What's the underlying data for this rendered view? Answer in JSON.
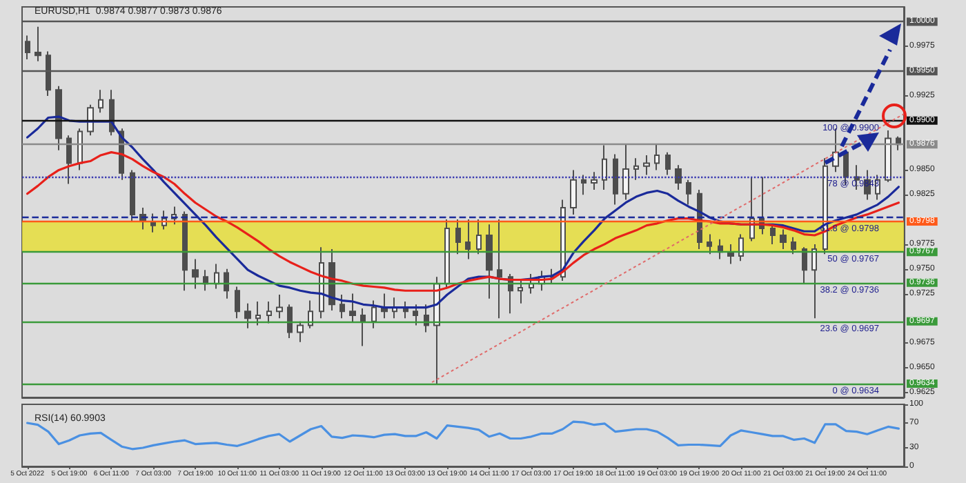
{
  "chart_data": [
    {
      "type": "candlestick",
      "title": "EURUSD,H1  0.9874 0.9877 0.9873 0.9876",
      "color": "#4d4d4d",
      "ohlc": [
        [
          0.998,
          0.9986,
          0.9962,
          0.9969
        ],
        [
          0.9969,
          0.9995,
          0.996,
          0.9966
        ],
        [
          0.9966,
          0.997,
          0.9925,
          0.9931
        ],
        [
          0.9931,
          0.9935,
          0.987,
          0.9882
        ],
        [
          0.9882,
          0.9885,
          0.9836,
          0.9857
        ],
        [
          0.9857,
          0.9892,
          0.985,
          0.9889
        ],
        [
          0.9889,
          0.9916,
          0.9885,
          0.9913
        ],
        [
          0.9913,
          0.9931,
          0.9908,
          0.9921
        ],
        [
          0.9921,
          0.9931,
          0.9885,
          0.9889
        ],
        [
          0.9889,
          0.9892,
          0.984,
          0.9847
        ],
        [
          0.9847,
          0.985,
          0.9798,
          0.9805
        ],
        [
          0.9805,
          0.9812,
          0.979,
          0.9798
        ],
        [
          0.9798,
          0.9806,
          0.9787,
          0.9794
        ],
        [
          0.9794,
          0.9809,
          0.979,
          0.9801
        ],
        [
          0.9801,
          0.9813,
          0.9795,
          0.9805
        ],
        [
          0.9805,
          0.9808,
          0.9728,
          0.9749
        ],
        [
          0.9749,
          0.976,
          0.973,
          0.9742
        ],
        [
          0.9742,
          0.9749,
          0.9728,
          0.9735
        ],
        [
          0.9735,
          0.9755,
          0.973,
          0.9746
        ],
        [
          0.9746,
          0.975,
          0.972,
          0.9728
        ],
        [
          0.9728,
          0.9732,
          0.97,
          0.9707
        ],
        [
          0.9707,
          0.9715,
          0.969,
          0.97
        ],
        [
          0.97,
          0.9717,
          0.9693,
          0.9703
        ],
        [
          0.9703,
          0.9717,
          0.9695,
          0.9707
        ],
        [
          0.9707,
          0.9724,
          0.97,
          0.9711
        ],
        [
          0.9711,
          0.9714,
          0.968,
          0.9686
        ],
        [
          0.9686,
          0.9697,
          0.9676,
          0.9693
        ],
        [
          0.9693,
          0.9718,
          0.969,
          0.9707
        ],
        [
          0.9707,
          0.9772,
          0.97,
          0.9756
        ],
        [
          0.9756,
          0.977,
          0.9708,
          0.9714
        ],
        [
          0.9714,
          0.9724,
          0.97,
          0.9707
        ],
        [
          0.9707,
          0.9725,
          0.9696,
          0.9703
        ],
        [
          0.9703,
          0.971,
          0.9672,
          0.9697
        ],
        [
          0.9697,
          0.9718,
          0.969,
          0.9711
        ],
        [
          0.9711,
          0.9725,
          0.97,
          0.9707
        ],
        [
          0.9707,
          0.9721,
          0.97,
          0.9711
        ],
        [
          0.9711,
          0.9717,
          0.97,
          0.9707
        ],
        [
          0.9707,
          0.9714,
          0.9693,
          0.9703
        ],
        [
          0.9703,
          0.9714,
          0.9686,
          0.9693
        ],
        [
          0.9693,
          0.9742,
          0.9634,
          0.9735
        ],
        [
          0.9735,
          0.98,
          0.973,
          0.9791
        ],
        [
          0.9791,
          0.98,
          0.9765,
          0.9777
        ],
        [
          0.9777,
          0.98,
          0.976,
          0.977
        ],
        [
          0.977,
          0.98,
          0.9765,
          0.9784
        ],
        [
          0.9784,
          0.9795,
          0.972,
          0.9749
        ],
        [
          0.9749,
          0.98,
          0.97,
          0.9742
        ],
        [
          0.9742,
          0.9745,
          0.9705,
          0.9728
        ],
        [
          0.9728,
          0.9738,
          0.9715,
          0.9731
        ],
        [
          0.9731,
          0.9745,
          0.9725,
          0.9735
        ],
        [
          0.9735,
          0.9748,
          0.9728,
          0.9742
        ],
        [
          0.9742,
          0.975,
          0.9735,
          0.9742
        ],
        [
          0.9742,
          0.982,
          0.9738,
          0.9812
        ],
        [
          0.9812,
          0.985,
          0.9805,
          0.984
        ],
        [
          0.984,
          0.9845,
          0.9825,
          0.9837
        ],
        [
          0.9837,
          0.9848,
          0.983,
          0.984
        ],
        [
          0.984,
          0.9875,
          0.983,
          0.9861
        ],
        [
          0.9861,
          0.9866,
          0.9815,
          0.9826
        ],
        [
          0.9826,
          0.9876,
          0.982,
          0.9851
        ],
        [
          0.9851,
          0.9862,
          0.984,
          0.9854
        ],
        [
          0.9854,
          0.9865,
          0.9845,
          0.9857
        ],
        [
          0.9857,
          0.9876,
          0.985,
          0.9865
        ],
        [
          0.9865,
          0.9868,
          0.9845,
          0.9851
        ],
        [
          0.9851,
          0.9855,
          0.983,
          0.9837
        ],
        [
          0.9837,
          0.984,
          0.9815,
          0.9826
        ],
        [
          0.9826,
          0.983,
          0.977,
          0.9777
        ],
        [
          0.9777,
          0.9785,
          0.9765,
          0.9773
        ],
        [
          0.9773,
          0.978,
          0.976,
          0.9767
        ],
        [
          0.9767,
          0.9775,
          0.9755,
          0.9763
        ],
        [
          0.9763,
          0.9785,
          0.9758,
          0.9781
        ],
        [
          0.9781,
          0.9843,
          0.9778,
          0.9801
        ],
        [
          0.9801,
          0.9843,
          0.9785,
          0.9791
        ],
        [
          0.9791,
          0.9795,
          0.9775,
          0.9784
        ],
        [
          0.9784,
          0.979,
          0.977,
          0.9777
        ],
        [
          0.9777,
          0.9782,
          0.9765,
          0.977
        ],
        [
          0.977,
          0.9772,
          0.9735,
          0.9749
        ],
        [
          0.9749,
          0.9775,
          0.97,
          0.977
        ],
        [
          0.977,
          0.9862,
          0.9765,
          0.9854
        ],
        [
          0.9854,
          0.9892,
          0.9848,
          0.9868
        ],
        [
          0.9868,
          0.987,
          0.9835,
          0.9843
        ],
        [
          0.9843,
          0.9855,
          0.983,
          0.984
        ],
        [
          0.984,
          0.985,
          0.982,
          0.9826
        ],
        [
          0.9826,
          0.9845,
          0.982,
          0.984
        ],
        [
          0.984,
          0.989,
          0.9838,
          0.9882
        ],
        [
          0.9882,
          0.9884,
          0.987,
          0.9876
        ]
      ],
      "series": [
        {
          "type": "line",
          "color": "#1a2a9a",
          "values": [
            0.9883,
            0.9892,
            0.9903,
            0.9904,
            0.99,
            0.9899,
            0.9899,
            0.9899,
            0.9899,
            0.9883,
            0.9873,
            0.9861,
            0.985,
            0.9838,
            0.9827,
            0.9816,
            0.9805,
            0.9794,
            0.9782,
            0.9771,
            0.976,
            0.9749,
            0.9743,
            0.9738,
            0.9733,
            0.9731,
            0.9728,
            0.9726,
            0.9725,
            0.9721,
            0.9718,
            0.9717,
            0.9714,
            0.9713,
            0.9711,
            0.9711,
            0.9711,
            0.9711,
            0.9711,
            0.9714,
            0.9724,
            0.9732,
            0.974,
            0.9742,
            0.9742,
            0.974,
            0.9739,
            0.9739,
            0.974,
            0.9742,
            0.9743,
            0.9749,
            0.9766,
            0.9778,
            0.9789,
            0.9801,
            0.9809,
            0.9817,
            0.9823,
            0.9827,
            0.9829,
            0.9826,
            0.9819,
            0.9813,
            0.9808,
            0.9802,
            0.9798,
            0.9796,
            0.9795,
            0.9795,
            0.9795,
            0.9795,
            0.9794,
            0.9791,
            0.9788,
            0.9788,
            0.9795,
            0.9799,
            0.9802,
            0.9805,
            0.981,
            0.9815,
            0.9823,
            0.9833
          ]
        },
        {
          "type": "line",
          "color": "#e8201a",
          "values": [
            0.9826,
            0.9834,
            0.9843,
            0.985,
            0.9854,
            0.9857,
            0.9859,
            0.9865,
            0.9868,
            0.9866,
            0.9861,
            0.9854,
            0.9848,
            0.9843,
            0.9836,
            0.9826,
            0.9817,
            0.981,
            0.9803,
            0.9798,
            0.9792,
            0.9785,
            0.9778,
            0.977,
            0.9763,
            0.9757,
            0.9752,
            0.9747,
            0.9743,
            0.974,
            0.9738,
            0.9735,
            0.9733,
            0.9732,
            0.9731,
            0.9729,
            0.9728,
            0.9728,
            0.9728,
            0.9728,
            0.9731,
            0.9735,
            0.9738,
            0.974,
            0.9742,
            0.974,
            0.9739,
            0.9739,
            0.9739,
            0.9739,
            0.974,
            0.9747,
            0.9756,
            0.9764,
            0.977,
            0.9775,
            0.9781,
            0.9785,
            0.9789,
            0.9794,
            0.9796,
            0.9799,
            0.9801,
            0.9801,
            0.9799,
            0.9798,
            0.9796,
            0.9796,
            0.9795,
            0.9795,
            0.9795,
            0.9794,
            0.9792,
            0.9789,
            0.9785,
            0.9784,
            0.9788,
            0.9794,
            0.9798,
            0.9802,
            0.9805,
            0.9809,
            0.9813,
            0.9817
          ]
        }
      ],
      "ylim": [
        0.962,
        1.0015
      ],
      "yticks": [
        {
          "value": 0.9625,
          "label": "0.9625"
        },
        {
          "value": 0.965,
          "label": "0.9650"
        },
        {
          "value": 0.9675,
          "label": "0.9675"
        },
        {
          "value": 0.9725,
          "label": "0.9725"
        },
        {
          "value": 0.975,
          "label": "0.9750"
        },
        {
          "value": 0.9775,
          "label": "0.9775"
        },
        {
          "value": 0.9825,
          "label": "0.9825"
        },
        {
          "value": 0.985,
          "label": "0.9850"
        },
        {
          "value": 0.9925,
          "label": "0.9925"
        },
        {
          "value": 0.9975,
          "label": "0.9975"
        }
      ],
      "tick_labels": "y",
      "marker": "none",
      "bands": [
        {
          "axis": "y",
          "from": 0.9767,
          "to": 0.9798,
          "color": "#e6de3c"
        }
      ],
      "ref_lines": [
        {
          "axis": "y",
          "value": 1.0,
          "label": "1.0000",
          "color": "#555555"
        },
        {
          "axis": "y",
          "value": 0.995,
          "label": "0.9950",
          "color": "#555555"
        },
        {
          "axis": "y",
          "value": 0.99,
          "label": "0.9900",
          "color": "#111111"
        },
        {
          "axis": "y",
          "value": 0.9876,
          "label": "0.9876",
          "color": "#8a8a8a"
        },
        {
          "axis": "y",
          "value": 0.9843,
          "label": null,
          "color": "#3a3ab0",
          "line_style": "dotted"
        },
        {
          "axis": "y",
          "value": 0.9803,
          "label": null,
          "color": "#1a2a9a",
          "line_style": "dashed"
        },
        {
          "axis": "y",
          "value": 0.9798,
          "label": "0.9798",
          "color": "#ff5a1a"
        },
        {
          "axis": "y",
          "value": 0.9767,
          "label": "0.9767",
          "color": "#3a9a3a"
        },
        {
          "axis": "y",
          "value": 0.9736,
          "label": "0.9736",
          "color": "#3a9a3a"
        },
        {
          "axis": "y",
          "value": 0.9697,
          "label": "0.9697",
          "color": "#3a9a3a"
        },
        {
          "axis": "y",
          "value": 0.9634,
          "label": "0.9634",
          "color": "#3a9a3a"
        }
      ],
      "annotations": [
        {
          "text": "100 @ 0.9900",
          "y": 0.99
        },
        {
          "text": "78 @ 0.9843",
          "y": 0.9843
        },
        {
          "text": "61.8 @ 0.9798",
          "y": 0.9798
        },
        {
          "text": "50 @ 0.9767",
          "y": 0.9767
        },
        {
          "text": "38.2 @ 0.9736",
          "y": 0.9736
        },
        {
          "text": "23.6 @ 0.9697",
          "y": 0.9697
        },
        {
          "text": "0 @ 0.9634",
          "y": 0.9634
        }
      ]
    },
    {
      "type": "line",
      "title": "RSI(14) 60.9903",
      "categories": [
        "5 Oct 2022",
        null,
        null,
        null,
        "5 Oct 19:00",
        null,
        null,
        null,
        "6 Oct 11:00",
        null,
        null,
        null,
        "7 Oct 03:00",
        null,
        null,
        null,
        "7 Oct 19:00",
        null,
        null,
        null,
        "10 Oct 11:00",
        null,
        null,
        null,
        "11 Oct 03:00",
        null,
        null,
        null,
        "11 Oct 19:00",
        null,
        null,
        null,
        "12 Oct 11:00",
        null,
        null,
        null,
        "13 Oct 03:00",
        null,
        null,
        null,
        "13 Oct 19:00",
        null,
        null,
        null,
        "14 Oct 11:00",
        null,
        null,
        null,
        "17 Oct 03:00",
        null,
        null,
        null,
        "17 Oct 19:00",
        null,
        null,
        null,
        "18 Oct 11:00",
        null,
        null,
        null,
        "19 Oct 03:00",
        null,
        null,
        null,
        "19 Oct 19:00",
        null,
        null,
        null,
        "20 Oct 11:00",
        null,
        null,
        null,
        "21 Oct 03:00",
        null,
        null,
        null,
        "21 Oct 19:00",
        null,
        null,
        null,
        "24 Oct 11:00",
        null,
        null,
        null
      ],
      "series": [
        {
          "color": "#4a90e2",
          "values": [
            70,
            67,
            56,
            36,
            42,
            50,
            53,
            54,
            43,
            32,
            28,
            30,
            34,
            37,
            40,
            42,
            36,
            37,
            38,
            35,
            33,
            38,
            44,
            49,
            52,
            40,
            50,
            60,
            65,
            48,
            46,
            50,
            49,
            47,
            51,
            52,
            49,
            49,
            55,
            45,
            66,
            64,
            62,
            59,
            48,
            53,
            45,
            45,
            48,
            53,
            53,
            60,
            72,
            71,
            67,
            69,
            56,
            58,
            60,
            60,
            56,
            46,
            34,
            35,
            35,
            34,
            33,
            50,
            58,
            55,
            52,
            49,
            49,
            43,
            45,
            38,
            68,
            68,
            57,
            56,
            52,
            58,
            64,
            61
          ]
        }
      ],
      "ylim": [
        0,
        100
      ],
      "yticks": [
        0,
        30,
        70,
        100
      ],
      "marker": "none"
    }
  ]
}
